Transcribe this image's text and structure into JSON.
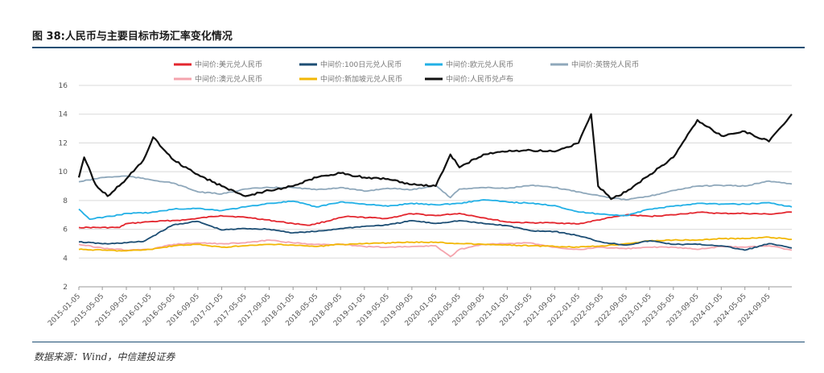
{
  "figure": {
    "title": "图 38:人民币与主要目标市场汇率变化情况",
    "source": "数据来源：Wind，中信建投证券"
  },
  "chart_data": {
    "type": "line",
    "ylim": [
      2,
      16
    ],
    "y_ticks": [
      2,
      4,
      6,
      8,
      10,
      12,
      14,
      16
    ],
    "grid": "horizontal",
    "legend_position": "top",
    "x_ticks": [
      "2015-01-05",
      "2015-05-05",
      "2015-09-05",
      "2016-01-05",
      "2016-05-05",
      "2016-09-05",
      "2017-01-05",
      "2017-05-05",
      "2017-09-05",
      "2018-01-05",
      "2018-05-05",
      "2018-09-05",
      "2019-01-05",
      "2019-05-05",
      "2019-09-05",
      "2020-01-05",
      "2020-05-05",
      "2020-09-05",
      "2021-01-05",
      "2021-05-05",
      "2021-09-05",
      "2022-01-05",
      "2022-05-05",
      "2022-09-05",
      "2023-01-05",
      "2023-05-05",
      "2023-09-05",
      "2024-01-05",
      "2024-05-05",
      "2024-09-05"
    ],
    "x_range": [
      "2015-01-05",
      "2024-12-31"
    ],
    "series": [
      {
        "name": "中间价:美元兑人民币",
        "color": "#e3262e",
        "points": [
          [
            "2015-01-05",
            6.12
          ],
          [
            "2015-08-01",
            6.12
          ],
          [
            "2015-09-01",
            6.38
          ],
          [
            "2016-01-05",
            6.53
          ],
          [
            "2016-07-01",
            6.65
          ],
          [
            "2016-12-31",
            6.95
          ],
          [
            "2017-06-01",
            6.8
          ],
          [
            "2018-01-05",
            6.4
          ],
          [
            "2018-04-01",
            6.28
          ],
          [
            "2018-10-01",
            6.88
          ],
          [
            "2019-05-01",
            6.75
          ],
          [
            "2019-09-01",
            7.08
          ],
          [
            "2020-01-05",
            6.95
          ],
          [
            "2020-05-05",
            7.1
          ],
          [
            "2020-09-05",
            6.8
          ],
          [
            "2021-01-05",
            6.5
          ],
          [
            "2021-05-05",
            6.45
          ],
          [
            "2021-09-05",
            6.45
          ],
          [
            "2022-01-05",
            6.37
          ],
          [
            "2022-05-05",
            6.7
          ],
          [
            "2022-09-05",
            7.0
          ],
          [
            "2023-01-05",
            6.9
          ],
          [
            "2023-05-05",
            7.0
          ],
          [
            "2023-09-05",
            7.18
          ],
          [
            "2024-01-05",
            7.1
          ],
          [
            "2024-05-05",
            7.1
          ],
          [
            "2024-09-05",
            7.05
          ],
          [
            "2024-12-31",
            7.19
          ]
        ]
      },
      {
        "name": "中间价:100日元兑人民币",
        "color": "#1d4e74",
        "points": [
          [
            "2015-01-05",
            5.12
          ],
          [
            "2015-06-01",
            4.98
          ],
          [
            "2015-12-01",
            5.15
          ],
          [
            "2016-05-01",
            6.3
          ],
          [
            "2016-09-01",
            6.55
          ],
          [
            "2017-01-05",
            5.95
          ],
          [
            "2017-05-05",
            6.05
          ],
          [
            "2017-09-05",
            6.0
          ],
          [
            "2018-01-05",
            5.75
          ],
          [
            "2018-05-05",
            5.85
          ],
          [
            "2018-09-05",
            6.05
          ],
          [
            "2019-01-05",
            6.2
          ],
          [
            "2019-05-05",
            6.3
          ],
          [
            "2019-09-05",
            6.6
          ],
          [
            "2020-01-05",
            6.4
          ],
          [
            "2020-05-05",
            6.6
          ],
          [
            "2020-09-05",
            6.4
          ],
          [
            "2021-01-05",
            6.25
          ],
          [
            "2021-05-05",
            5.9
          ],
          [
            "2021-09-05",
            5.85
          ],
          [
            "2022-01-05",
            5.55
          ],
          [
            "2022-05-05",
            5.1
          ],
          [
            "2022-09-05",
            4.9
          ],
          [
            "2023-01-05",
            5.2
          ],
          [
            "2023-05-05",
            4.95
          ],
          [
            "2023-09-05",
            4.95
          ],
          [
            "2024-01-05",
            4.85
          ],
          [
            "2024-05-05",
            4.55
          ],
          [
            "2024-09-05",
            5.0
          ],
          [
            "2024-12-31",
            4.7
          ]
        ]
      },
      {
        "name": "中间价:欧元兑人民币",
        "color": "#22b0e6",
        "points": [
          [
            "2015-01-05",
            7.4
          ],
          [
            "2015-03-01",
            6.7
          ],
          [
            "2015-08-01",
            7.0
          ],
          [
            "2015-09-05",
            7.1
          ],
          [
            "2016-01-05",
            7.15
          ],
          [
            "2016-05-05",
            7.4
          ],
          [
            "2016-09-05",
            7.45
          ],
          [
            "2017-01-05",
            7.3
          ],
          [
            "2017-05-05",
            7.55
          ],
          [
            "2017-09-05",
            7.8
          ],
          [
            "2018-01-05",
            7.95
          ],
          [
            "2018-05-05",
            7.55
          ],
          [
            "2018-09-05",
            7.9
          ],
          [
            "2019-01-05",
            7.75
          ],
          [
            "2019-05-05",
            7.6
          ],
          [
            "2019-09-05",
            7.8
          ],
          [
            "2020-01-05",
            7.7
          ],
          [
            "2020-05-05",
            7.8
          ],
          [
            "2020-09-05",
            8.05
          ],
          [
            "2021-01-05",
            7.9
          ],
          [
            "2021-05-05",
            7.8
          ],
          [
            "2021-09-05",
            7.65
          ],
          [
            "2022-01-05",
            7.2
          ],
          [
            "2022-05-05",
            7.05
          ],
          [
            "2022-09-05",
            6.95
          ],
          [
            "2023-01-05",
            7.4
          ],
          [
            "2023-05-05",
            7.6
          ],
          [
            "2023-09-05",
            7.8
          ],
          [
            "2024-01-05",
            7.75
          ],
          [
            "2024-05-05",
            7.75
          ],
          [
            "2024-09-05",
            7.85
          ],
          [
            "2024-12-31",
            7.55
          ]
        ]
      },
      {
        "name": "中间价:英镑兑人民币",
        "color": "#8fa8bb",
        "points": [
          [
            "2015-01-05",
            9.3
          ],
          [
            "2015-05-05",
            9.6
          ],
          [
            "2015-09-05",
            9.7
          ],
          [
            "2016-01-05",
            9.45
          ],
          [
            "2016-05-05",
            9.2
          ],
          [
            "2016-09-05",
            8.6
          ],
          [
            "2017-01-05",
            8.45
          ],
          [
            "2017-05-05",
            8.8
          ],
          [
            "2017-09-05",
            8.9
          ],
          [
            "2018-01-05",
            8.9
          ],
          [
            "2018-05-05",
            8.75
          ],
          [
            "2018-09-05",
            8.9
          ],
          [
            "2019-01-05",
            8.65
          ],
          [
            "2019-05-05",
            8.85
          ],
          [
            "2019-09-05",
            8.75
          ],
          [
            "2020-01-05",
            9.05
          ],
          [
            "2020-03-20",
            8.2
          ],
          [
            "2020-05-05",
            8.8
          ],
          [
            "2020-09-05",
            8.9
          ],
          [
            "2021-01-05",
            8.85
          ],
          [
            "2021-05-05",
            9.05
          ],
          [
            "2021-09-05",
            8.9
          ],
          [
            "2022-01-05",
            8.6
          ],
          [
            "2022-05-05",
            8.3
          ],
          [
            "2022-09-05",
            8.05
          ],
          [
            "2023-01-05",
            8.3
          ],
          [
            "2023-05-05",
            8.7
          ],
          [
            "2023-09-05",
            9.0
          ],
          [
            "2024-01-05",
            9.05
          ],
          [
            "2024-05-05",
            9.0
          ],
          [
            "2024-09-05",
            9.35
          ],
          [
            "2024-12-31",
            9.15
          ]
        ]
      },
      {
        "name": "中间价:澳元兑人民币",
        "color": "#f4a4ad",
        "points": [
          [
            "2015-01-05",
            4.95
          ],
          [
            "2015-05-05",
            4.7
          ],
          [
            "2015-09-05",
            4.55
          ],
          [
            "2016-01-05",
            4.6
          ],
          [
            "2016-05-05",
            4.95
          ],
          [
            "2016-09-05",
            5.05
          ],
          [
            "2017-01-05",
            5.0
          ],
          [
            "2017-05-05",
            5.05
          ],
          [
            "2017-09-05",
            5.25
          ],
          [
            "2018-01-05",
            5.05
          ],
          [
            "2018-05-05",
            4.95
          ],
          [
            "2018-09-05",
            4.95
          ],
          [
            "2019-01-05",
            4.8
          ],
          [
            "2019-05-05",
            4.75
          ],
          [
            "2019-09-05",
            4.8
          ],
          [
            "2020-01-05",
            4.85
          ],
          [
            "2020-03-20",
            4.1
          ],
          [
            "2020-05-05",
            4.6
          ],
          [
            "2020-09-05",
            4.95
          ],
          [
            "2021-01-05",
            5.0
          ],
          [
            "2021-05-05",
            5.05
          ],
          [
            "2021-09-05",
            4.75
          ],
          [
            "2022-01-05",
            4.6
          ],
          [
            "2022-05-05",
            4.75
          ],
          [
            "2022-09-05",
            4.65
          ],
          [
            "2023-01-05",
            4.75
          ],
          [
            "2023-05-05",
            4.75
          ],
          [
            "2023-09-05",
            4.6
          ],
          [
            "2024-01-05",
            4.8
          ],
          [
            "2024-05-05",
            4.75
          ],
          [
            "2024-09-05",
            4.85
          ],
          [
            "2024-12-31",
            4.55
          ]
        ]
      },
      {
        "name": "中间价:新加坡元兑人民币",
        "color": "#f2b705",
        "points": [
          [
            "2015-01-05",
            4.6
          ],
          [
            "2015-05-05",
            4.55
          ],
          [
            "2015-09-05",
            4.5
          ],
          [
            "2016-01-05",
            4.6
          ],
          [
            "2016-05-05",
            4.85
          ],
          [
            "2016-09-05",
            4.95
          ],
          [
            "2017-01-05",
            4.75
          ],
          [
            "2017-05-05",
            4.85
          ],
          [
            "2017-09-05",
            4.95
          ],
          [
            "2018-01-05",
            4.9
          ],
          [
            "2018-05-05",
            4.8
          ],
          [
            "2018-09-05",
            4.95
          ],
          [
            "2019-01-05",
            5.0
          ],
          [
            "2019-05-05",
            5.05
          ],
          [
            "2019-09-05",
            5.1
          ],
          [
            "2020-01-05",
            5.1
          ],
          [
            "2020-05-05",
            5.0
          ],
          [
            "2020-09-05",
            4.95
          ],
          [
            "2021-01-05",
            4.9
          ],
          [
            "2021-05-05",
            4.85
          ],
          [
            "2021-09-05",
            4.8
          ],
          [
            "2022-01-05",
            4.75
          ],
          [
            "2022-05-05",
            4.85
          ],
          [
            "2022-09-05",
            5.0
          ],
          [
            "2023-01-05",
            5.2
          ],
          [
            "2023-05-05",
            5.25
          ],
          [
            "2023-09-05",
            5.25
          ],
          [
            "2024-01-05",
            5.35
          ],
          [
            "2024-05-05",
            5.35
          ],
          [
            "2024-09-05",
            5.45
          ],
          [
            "2024-12-31",
            5.3
          ]
        ]
      },
      {
        "name": "中间价:人民币兑卢布",
        "color": "#111111",
        "points": [
          [
            "2015-01-05",
            9.6
          ],
          [
            "2015-02-01",
            11.0
          ],
          [
            "2015-04-01",
            9.1
          ],
          [
            "2015-06-01",
            8.3
          ],
          [
            "2015-09-05",
            9.5
          ],
          [
            "2015-12-01",
            10.8
          ],
          [
            "2016-01-20",
            12.4
          ],
          [
            "2016-05-05",
            10.8
          ],
          [
            "2016-09-05",
            9.8
          ],
          [
            "2017-01-05",
            9.0
          ],
          [
            "2017-05-05",
            8.3
          ],
          [
            "2017-09-05",
            8.7
          ],
          [
            "2018-01-05",
            9.0
          ],
          [
            "2018-05-05",
            9.6
          ],
          [
            "2018-09-05",
            9.9
          ],
          [
            "2019-01-05",
            9.6
          ],
          [
            "2019-05-05",
            9.5
          ],
          [
            "2019-09-05",
            9.1
          ],
          [
            "2020-01-05",
            9.0
          ],
          [
            "2020-03-20",
            11.2
          ],
          [
            "2020-05-05",
            10.3
          ],
          [
            "2020-09-05",
            11.2
          ],
          [
            "2021-01-05",
            11.4
          ],
          [
            "2021-05-05",
            11.5
          ],
          [
            "2021-09-05",
            11.4
          ],
          [
            "2022-01-05",
            12.0
          ],
          [
            "2022-03-10",
            14.0
          ],
          [
            "2022-04-15",
            9.0
          ],
          [
            "2022-06-20",
            8.1
          ],
          [
            "2022-09-05",
            8.6
          ],
          [
            "2023-01-05",
            9.8
          ],
          [
            "2023-05-05",
            11.0
          ],
          [
            "2023-09-05",
            13.6
          ],
          [
            "2024-01-05",
            12.5
          ],
          [
            "2024-05-05",
            12.8
          ],
          [
            "2024-09-05",
            12.1
          ],
          [
            "2024-12-31",
            14.0
          ]
        ]
      }
    ]
  }
}
